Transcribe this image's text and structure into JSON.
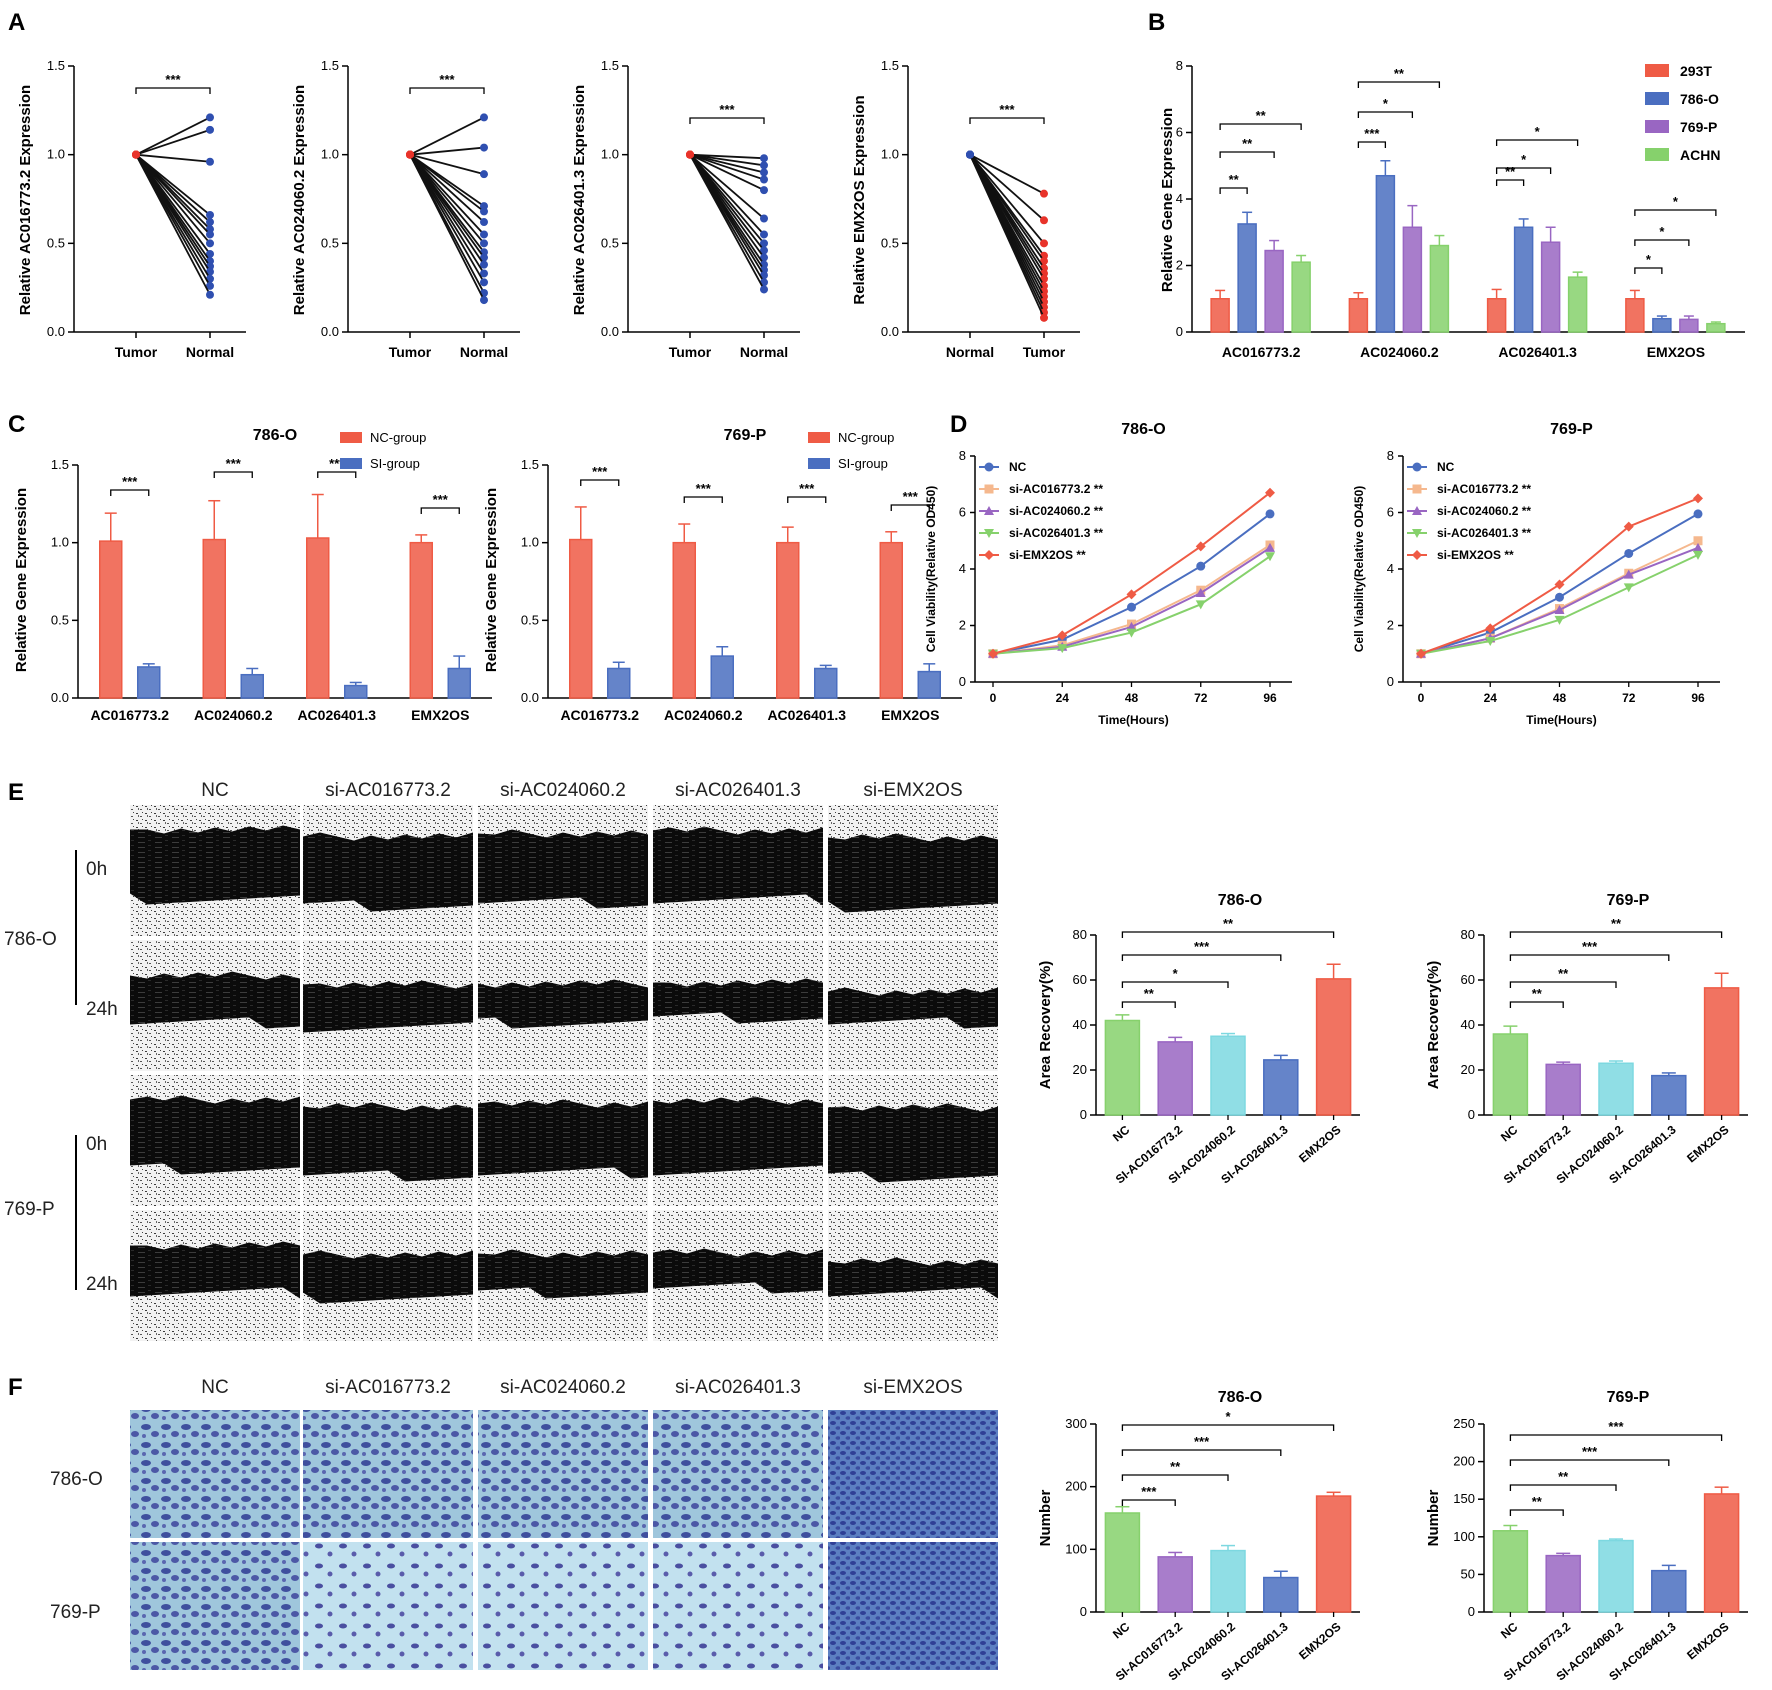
{
  "panels": {
    "A": "A",
    "B": "B",
    "C": "C",
    "D": "D",
    "E": "E",
    "F": "F"
  },
  "chart_data": [
    {
      "id": "A1",
      "type": "line",
      "panel": "A",
      "ylabel": "Relative AC016773.2 Expression",
      "categories": [
        "Tumor",
        "Normal"
      ],
      "ylim": [
        0,
        1.5
      ],
      "yticks": [
        "0.0",
        "0.5",
        "1.0",
        "1.5"
      ],
      "significance": "***",
      "series": [
        {
          "values": [
            1.0,
            1.21
          ]
        },
        {
          "values": [
            1.0,
            1.14
          ]
        },
        {
          "values": [
            1.0,
            0.96
          ]
        },
        {
          "values": [
            1.0,
            0.66
          ]
        },
        {
          "values": [
            1.0,
            0.62
          ]
        },
        {
          "values": [
            1.0,
            0.58
          ]
        },
        {
          "values": [
            1.0,
            0.55
          ]
        },
        {
          "values": [
            1.0,
            0.5
          ]
        },
        {
          "values": [
            1.0,
            0.44
          ]
        },
        {
          "values": [
            1.0,
            0.4
          ]
        },
        {
          "values": [
            1.0,
            0.37
          ]
        },
        {
          "values": [
            1.0,
            0.34
          ]
        },
        {
          "values": [
            1.0,
            0.3
          ]
        },
        {
          "values": [
            1.0,
            0.26
          ]
        },
        {
          "values": [
            1.0,
            0.21
          ]
        }
      ]
    },
    {
      "id": "A2",
      "type": "line",
      "panel": "A",
      "ylabel": "Relative AC024060.2 Expression",
      "categories": [
        "Tumor",
        "Normal"
      ],
      "ylim": [
        0,
        1.5
      ],
      "yticks": [
        "0.0",
        "0.5",
        "1.0",
        "1.5"
      ],
      "significance": "***",
      "series": [
        {
          "values": [
            1.0,
            1.21
          ]
        },
        {
          "values": [
            1.0,
            1.04
          ]
        },
        {
          "values": [
            1.0,
            0.89
          ]
        },
        {
          "values": [
            1.0,
            0.71
          ]
        },
        {
          "values": [
            1.0,
            0.68
          ]
        },
        {
          "values": [
            1.0,
            0.62
          ]
        },
        {
          "values": [
            1.0,
            0.55
          ]
        },
        {
          "values": [
            1.0,
            0.5
          ]
        },
        {
          "values": [
            1.0,
            0.45
          ]
        },
        {
          "values": [
            1.0,
            0.42
          ]
        },
        {
          "values": [
            1.0,
            0.38
          ]
        },
        {
          "values": [
            1.0,
            0.33
          ]
        },
        {
          "values": [
            1.0,
            0.28
          ]
        },
        {
          "values": [
            1.0,
            0.22
          ]
        },
        {
          "values": [
            1.0,
            0.18
          ]
        }
      ]
    },
    {
      "id": "A3",
      "type": "line",
      "panel": "A",
      "ylabel": "Relative AC026401.3 Expression",
      "categories": [
        "Tumor",
        "Normal"
      ],
      "ylim": [
        0,
        1.5
      ],
      "yticks": [
        "0.0",
        "0.5",
        "1.0",
        "1.5"
      ],
      "significance": "***",
      "series": [
        {
          "values": [
            1.0,
            0.98
          ]
        },
        {
          "values": [
            1.0,
            0.94
          ]
        },
        {
          "values": [
            1.0,
            0.9
          ]
        },
        {
          "values": [
            1.0,
            0.86
          ]
        },
        {
          "values": [
            1.0,
            0.8
          ]
        },
        {
          "values": [
            1.0,
            0.64
          ]
        },
        {
          "values": [
            1.0,
            0.55
          ]
        },
        {
          "values": [
            1.0,
            0.5
          ]
        },
        {
          "values": [
            1.0,
            0.46
          ]
        },
        {
          "values": [
            1.0,
            0.42
          ]
        },
        {
          "values": [
            1.0,
            0.38
          ]
        },
        {
          "values": [
            1.0,
            0.35
          ]
        },
        {
          "values": [
            1.0,
            0.32
          ]
        },
        {
          "values": [
            1.0,
            0.28
          ]
        },
        {
          "values": [
            1.0,
            0.24
          ]
        }
      ]
    },
    {
      "id": "A4",
      "type": "line",
      "panel": "A",
      "ylabel": "Relative EMX2OS Expression",
      "categories": [
        "Normal",
        "Tumor"
      ],
      "ylim": [
        0,
        1.5
      ],
      "yticks": [
        "0.0",
        "0.5",
        "1.0",
        "1.5"
      ],
      "significance": "***",
      "series": [
        {
          "values": [
            1.0,
            0.78
          ]
        },
        {
          "values": [
            1.0,
            0.63
          ]
        },
        {
          "values": [
            1.0,
            0.5
          ]
        },
        {
          "values": [
            1.0,
            0.43
          ]
        },
        {
          "values": [
            1.0,
            0.4
          ]
        },
        {
          "values": [
            1.0,
            0.36
          ]
        },
        {
          "values": [
            1.0,
            0.33
          ]
        },
        {
          "values": [
            1.0,
            0.3
          ]
        },
        {
          "values": [
            1.0,
            0.26
          ]
        },
        {
          "values": [
            1.0,
            0.23
          ]
        },
        {
          "values": [
            1.0,
            0.2
          ]
        },
        {
          "values": [
            1.0,
            0.17
          ]
        },
        {
          "values": [
            1.0,
            0.14
          ]
        },
        {
          "values": [
            1.0,
            0.11
          ]
        },
        {
          "values": [
            1.0,
            0.08
          ]
        }
      ]
    },
    {
      "id": "B",
      "type": "bar",
      "panel": "B",
      "ylabel": "Relative Gene Expression",
      "categories": [
        "AC016773.2",
        "AC024060.2",
        "AC026401.3",
        "EMX2OS"
      ],
      "ylim": [
        0,
        8
      ],
      "yticks": [
        "0",
        "2",
        "4",
        "6",
        "8"
      ],
      "legend": "top-right",
      "series": [
        {
          "name": "293T",
          "color": "#ef5b45",
          "values": [
            1.0,
            1.0,
            1.0,
            1.0
          ],
          "err": [
            0.25,
            0.18,
            0.28,
            0.25
          ]
        },
        {
          "name": "786-O",
          "color": "#4a6ec0",
          "values": [
            3.25,
            4.7,
            3.15,
            0.4
          ],
          "err": [
            0.35,
            0.45,
            0.25,
            0.08
          ]
        },
        {
          "name": "769-P",
          "color": "#9966c2",
          "values": [
            2.45,
            3.15,
            2.7,
            0.38
          ],
          "err": [
            0.3,
            0.65,
            0.45,
            0.1
          ]
        },
        {
          "name": "ACHN",
          "color": "#86d16c",
          "values": [
            2.1,
            2.6,
            1.65,
            0.25
          ],
          "err": [
            0.2,
            0.3,
            0.15,
            0.05
          ]
        }
      ],
      "significance": [
        [
          "**",
          "**",
          "**"
        ],
        [
          "***",
          "*",
          "**"
        ],
        [
          "**",
          "*",
          "*"
        ],
        [
          "*",
          "*",
          "*"
        ]
      ]
    },
    {
      "id": "C1",
      "type": "bar",
      "panel": "C",
      "title": "786-O",
      "ylabel": "Relative Gene Expression",
      "categories": [
        "AC016773.2",
        "AC024060.2",
        "AC026401.3",
        "EMX2OS"
      ],
      "ylim": [
        0,
        1.5
      ],
      "yticks": [
        "0.0",
        "0.5",
        "1.0",
        "1.5"
      ],
      "legend": "top-right",
      "series": [
        {
          "name": "NC-group",
          "color": "#ef5b45",
          "values": [
            1.01,
            1.02,
            1.03,
            1.0
          ],
          "err": [
            0.18,
            0.25,
            0.28,
            0.05
          ]
        },
        {
          "name": "SI-group",
          "color": "#4a6ec0",
          "values": [
            0.2,
            0.15,
            0.08,
            0.19
          ],
          "err": [
            0.02,
            0.04,
            0.02,
            0.08
          ]
        }
      ],
      "significance": [
        "***",
        "***",
        "***",
        "***"
      ]
    },
    {
      "id": "C2",
      "type": "bar",
      "panel": "C",
      "title": "769-P",
      "ylabel": "Relative Gene Expression",
      "categories": [
        "AC016773.2",
        "AC024060.2",
        "AC026401.3",
        "EMX2OS"
      ],
      "ylim": [
        0,
        1.5
      ],
      "yticks": [
        "0.0",
        "0.5",
        "1.0",
        "1.5"
      ],
      "legend": "top-right",
      "series": [
        {
          "name": "NC-group",
          "color": "#ef5b45",
          "values": [
            1.02,
            1.0,
            1.0,
            1.0
          ],
          "err": [
            0.21,
            0.12,
            0.1,
            0.07
          ]
        },
        {
          "name": "SI-group",
          "color": "#4a6ec0",
          "values": [
            0.19,
            0.27,
            0.19,
            0.17
          ],
          "err": [
            0.04,
            0.06,
            0.02,
            0.05
          ]
        }
      ],
      "significance": [
        "***",
        "***",
        "***",
        "***"
      ]
    },
    {
      "id": "D1",
      "type": "line",
      "panel": "D",
      "title": "786-O",
      "xlabel": "Time(Hours)",
      "ylabel": "Cell Viability(Relative OD450)",
      "x": [
        0,
        24,
        48,
        72,
        96
      ],
      "ylim": [
        0,
        8
      ],
      "yticks": [
        "0",
        "2",
        "4",
        "6",
        "8"
      ],
      "legend": "top-left",
      "series": [
        {
          "name": "NC",
          "color": "#4a6ec0",
          "marker": "circle",
          "values": [
            1.0,
            1.5,
            2.65,
            4.1,
            5.95
          ]
        },
        {
          "name": "si-AC016773.2 **",
          "color": "#f5b88e",
          "marker": "square",
          "values": [
            1.0,
            1.3,
            2.05,
            3.25,
            4.85
          ]
        },
        {
          "name": "si-AC024060.2 **",
          "color": "#9966c2",
          "marker": "triangle",
          "values": [
            1.0,
            1.25,
            1.95,
            3.15,
            4.75
          ]
        },
        {
          "name": "si-AC026401.3 **",
          "color": "#86d16c",
          "marker": "triangle-down",
          "values": [
            1.0,
            1.2,
            1.75,
            2.75,
            4.45
          ]
        },
        {
          "name": "si-EMX2OS **",
          "color": "#ef5b45",
          "marker": "diamond",
          "values": [
            1.0,
            1.65,
            3.1,
            4.8,
            6.7
          ]
        }
      ]
    },
    {
      "id": "D2",
      "type": "line",
      "panel": "D",
      "title": "769-P",
      "xlabel": "Time(Hours)",
      "ylabel": "Cell Viability(Relative OD450)",
      "x": [
        0,
        24,
        48,
        72,
        96
      ],
      "ylim": [
        0,
        8
      ],
      "yticks": [
        "0",
        "2",
        "4",
        "6",
        "8"
      ],
      "legend": "top-left",
      "series": [
        {
          "name": "NC",
          "color": "#4a6ec0",
          "marker": "circle",
          "values": [
            1.0,
            1.75,
            3.0,
            4.55,
            5.95
          ]
        },
        {
          "name": "si-AC016773.2 **",
          "color": "#f5b88e",
          "marker": "square",
          "values": [
            1.0,
            1.55,
            2.6,
            3.85,
            5.0
          ]
        },
        {
          "name": "si-AC024060.2 **",
          "color": "#9966c2",
          "marker": "triangle",
          "values": [
            1.0,
            1.55,
            2.55,
            3.8,
            4.75
          ]
        },
        {
          "name": "si-AC026401.3 **",
          "color": "#86d16c",
          "marker": "triangle-down",
          "values": [
            1.0,
            1.45,
            2.2,
            3.35,
            4.5
          ]
        },
        {
          "name": "si-EMX2OS **",
          "color": "#ef5b45",
          "marker": "diamond",
          "values": [
            1.0,
            1.9,
            3.45,
            5.5,
            6.5
          ]
        }
      ]
    },
    {
      "id": "E1",
      "type": "bar",
      "panel": "E",
      "title": "786-O",
      "ylabel": "Area Recovery(%)",
      "categories": [
        "NC",
        "SI-AC016773.2",
        "SI-AC024060.2",
        "SI-AC026401.3",
        "EMX2OS"
      ],
      "ylim": [
        0,
        80
      ],
      "yticks": [
        "0",
        "20",
        "40",
        "60",
        "80"
      ],
      "values": [
        42,
        32.5,
        35,
        24.5,
        60.5
      ],
      "err": [
        2.5,
        2,
        1.2,
        2,
        6.5
      ],
      "colors": [
        "#86d16c",
        "#9966c2",
        "#7dd8e0",
        "#4a6ec0",
        "#ef5b45"
      ],
      "significance": [
        "**",
        "*",
        "***",
        "**"
      ]
    },
    {
      "id": "E2",
      "type": "bar",
      "panel": "E",
      "title": "769-P",
      "ylabel": "Area Recovery(%)",
      "categories": [
        "NC",
        "SI-AC016773.2",
        "SI-AC024060.2",
        "SI-AC026401.3",
        "EMX2OS"
      ],
      "ylim": [
        0,
        80
      ],
      "yticks": [
        "0",
        "20",
        "40",
        "60",
        "80"
      ],
      "values": [
        36,
        22.5,
        23,
        17.5,
        56.5
      ],
      "err": [
        3.5,
        1,
        1,
        1.2,
        6.5
      ],
      "colors": [
        "#86d16c",
        "#9966c2",
        "#7dd8e0",
        "#4a6ec0",
        "#ef5b45"
      ],
      "significance": [
        "**",
        "**",
        "***",
        "**"
      ]
    },
    {
      "id": "F1",
      "type": "bar",
      "panel": "F",
      "title": "786-O",
      "ylabel": "Number",
      "categories": [
        "NC",
        "SI-AC016773.2",
        "SI-AC024060.2",
        "SI-AC026401.3",
        "EMX2OS"
      ],
      "ylim": [
        0,
        300
      ],
      "yticks": [
        "0",
        "100",
        "200",
        "300"
      ],
      "values": [
        158,
        88,
        98,
        55,
        185
      ],
      "err": [
        10,
        7,
        8,
        10,
        6
      ],
      "colors": [
        "#86d16c",
        "#9966c2",
        "#7dd8e0",
        "#4a6ec0",
        "#ef5b45"
      ],
      "significance": [
        "***",
        "**",
        "***",
        "*"
      ]
    },
    {
      "id": "F2",
      "type": "bar",
      "panel": "F",
      "title": "769-P",
      "ylabel": "Number",
      "categories": [
        "NC",
        "SI-AC016773.2",
        "SI-AC024060.2",
        "SI-AC026401.3",
        "EMX2OS"
      ],
      "ylim": [
        0,
        250
      ],
      "yticks": [
        "0",
        "50",
        "100",
        "150",
        "200",
        "250"
      ],
      "values": [
        108,
        75,
        95,
        55,
        157
      ],
      "err": [
        7,
        3,
        2,
        7,
        9
      ],
      "colors": [
        "#86d16c",
        "#9966c2",
        "#7dd8e0",
        "#4a6ec0",
        "#ef5b45"
      ],
      "significance": [
        "**",
        "**",
        "***",
        "***"
      ]
    }
  ],
  "image_grids": {
    "E": {
      "columns": [
        "NC",
        "si-AC016773.2",
        "si-AC024060.2",
        "si-AC026401.3",
        "si-EMX2OS"
      ],
      "cell_lines": [
        "786-O",
        "769-P"
      ],
      "times": [
        "0h",
        "24h"
      ]
    },
    "F": {
      "columns": [
        "NC",
        "si-AC016773.2",
        "si-AC024060.2",
        "si-AC026401.3",
        "si-EMX2OS"
      ],
      "rows": [
        "786-O",
        "769-P"
      ]
    }
  }
}
